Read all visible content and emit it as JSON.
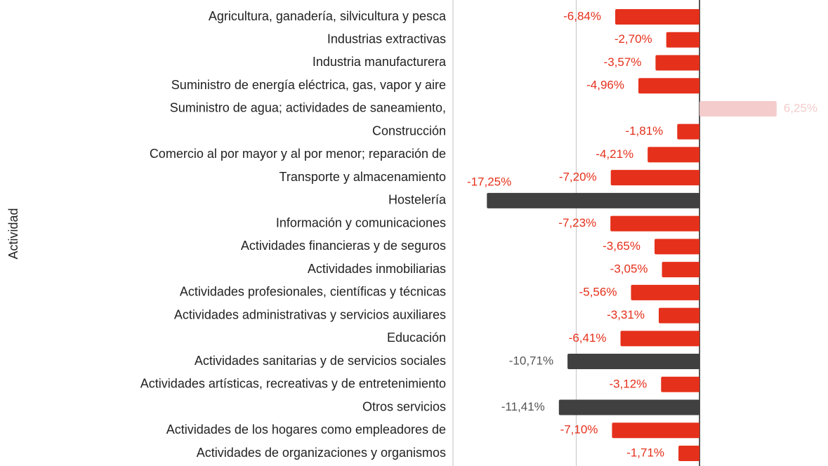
{
  "chart_data": {
    "type": "hbar",
    "y_label": "Actividad",
    "categories": [
      "Agricultura, ganadería, silvicultura y pesca",
      "Industrias extractivas",
      "Industria manufacturera",
      "Suministro de energía eléctrica, gas, vapor y aire",
      "Suministro de agua; actividades de saneamiento,",
      "Construcción",
      "Comercio al por mayor y al por menor; reparación de",
      "Transporte y almacenamiento",
      "Hostelería",
      "Información y comunicaciones",
      "Actividades financieras y de seguros",
      "Actividades inmobiliarias",
      "Actividades profesionales, científicas y técnicas",
      "Actividades administrativas y servicios auxiliares",
      "Educación",
      "Actividades sanitarias y de servicios sociales",
      "Actividades artísticas, recreativas y de entretenimiento",
      "Otros servicios",
      "Actividades de los hogares como empleadores de",
      "Actividades de organizaciones y organismos"
    ],
    "values": [
      -6.84,
      -2.7,
      -3.57,
      -4.96,
      6.25,
      -1.81,
      -4.21,
      -7.2,
      -17.25,
      -7.23,
      -3.65,
      -3.05,
      -5.56,
      -3.31,
      -6.41,
      -10.71,
      -3.12,
      -11.41,
      -7.1,
      -1.71
    ],
    "value_labels": [
      "-6,84%",
      "-2,70%",
      "-3,57%",
      "-4,96%",
      "6,25%",
      "-1,81%",
      "-4,21%",
      "-7,20%",
      "-17,25%",
      "-7,23%",
      "-3,65%",
      "-3,05%",
      "-5,56%",
      "-3,31%",
      "-6,41%",
      "-10,71%",
      "-3,12%",
      "-11,41%",
      "-7,10%",
      "-1,71%"
    ],
    "colors": [
      "#e5301b",
      "#e5301b",
      "#e5301b",
      "#e5301b",
      "#f4cccc",
      "#e5301b",
      "#e5301b",
      "#e5301b",
      "#404040",
      "#e5301b",
      "#e5301b",
      "#e5301b",
      "#e5301b",
      "#e5301b",
      "#e5301b",
      "#404040",
      "#e5301b",
      "#404040",
      "#e5301b",
      "#e5301b"
    ],
    "label_colors": [
      "#e5301b",
      "#e5301b",
      "#e5301b",
      "#e5301b",
      "#f4cccc",
      "#e5301b",
      "#e5301b",
      "#e5301b",
      "#e5301b",
      "#e5301b",
      "#e5301b",
      "#e5301b",
      "#e5301b",
      "#e5301b",
      "#e5301b",
      "#555555",
      "#e5301b",
      "#555555",
      "#e5301b",
      "#e5301b"
    ],
    "xlim": [
      -20,
      10.42
    ],
    "xticks": [
      -20,
      -10,
      0
    ],
    "grid": true
  }
}
